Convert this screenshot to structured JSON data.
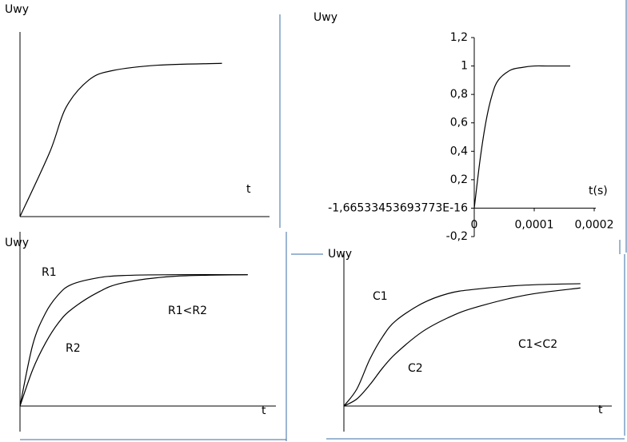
{
  "chart_data": [
    {
      "type": "line",
      "ylabel": "Uwy",
      "xlabel": "t",
      "x": [
        0,
        0.13,
        0.2,
        0.3,
        0.4,
        0.6,
        0.88
      ],
      "values": [
        0,
        0.35,
        0.59,
        0.74,
        0.79,
        0.82,
        0.83
      ],
      "color": "#000000",
      "xlim": [
        0,
        1
      ],
      "ylim": [
        0,
        1
      ]
    },
    {
      "type": "line",
      "ylabel": "Uwy",
      "xlabel": "t(s)",
      "x": [
        0,
        1e-05,
        2e-05,
        3e-05,
        4e-05,
        6e-05,
        8e-05,
        0.0001,
        0.00012,
        0.00014,
        0.00016
      ],
      "values": [
        0,
        0.35,
        0.62,
        0.8,
        0.9,
        0.97,
        0.99,
        1,
        1,
        1,
        1
      ],
      "color": "#000000",
      "xlim": [
        0,
        0.0002
      ],
      "ylim": [
        -0.2,
        1.2
      ],
      "xticks": [
        0,
        {
          "value": 0.0001,
          "label": "0,0001"
        },
        {
          "value": 0.0002,
          "label": "0,0002"
        }
      ],
      "yticks": [
        {
          "value": -0.2,
          "label": "-0,2"
        },
        {
          "value": -1.66533453693773e-16,
          "label": "-1,66533453693773E-16"
        },
        {
          "value": 0.2,
          "label": "0,2"
        },
        {
          "value": 0.4,
          "label": "0,4"
        },
        {
          "value": 0.6,
          "label": "0,6"
        },
        {
          "value": 0.8,
          "label": "0,8"
        },
        1,
        {
          "value": 1.2,
          "label": "1,2"
        }
      ]
    },
    {
      "type": "line",
      "ylabel": "Uwy",
      "xlabel": "t",
      "annotation": "R1<R2",
      "x": [
        0,
        0.05,
        0.1,
        0.15,
        0.2,
        0.3,
        0.4,
        0.6,
        0.89
      ],
      "series": [
        {
          "name": "R1",
          "color": "#000000",
          "values": [
            0,
            0.37,
            0.56,
            0.67,
            0.73,
            0.77,
            0.785,
            0.79,
            0.79
          ]
        },
        {
          "name": "R2",
          "color": "#000000",
          "values": [
            0,
            0.22,
            0.38,
            0.5,
            0.58,
            0.68,
            0.74,
            0.78,
            0.79
          ]
        }
      ],
      "xlim": [
        0,
        1
      ],
      "ylim": [
        0,
        1
      ]
    },
    {
      "type": "line",
      "ylabel": "Uwy",
      "xlabel": "t",
      "annotation": "C1<C2",
      "x": [
        0,
        0.05,
        0.1,
        0.15,
        0.2,
        0.3,
        0.4,
        0.5,
        0.7,
        0.91
      ],
      "series": [
        {
          "name": "C1",
          "color": "#000000",
          "values": [
            0,
            0.12,
            0.33,
            0.49,
            0.6,
            0.72,
            0.79,
            0.82,
            0.85,
            0.86
          ]
        },
        {
          "name": "C2",
          "color": "#000000",
          "values": [
            0,
            0.05,
            0.15,
            0.27,
            0.37,
            0.52,
            0.62,
            0.69,
            0.78,
            0.83
          ]
        }
      ],
      "xlim": [
        0,
        1
      ],
      "ylim": [
        0,
        1
      ]
    }
  ]
}
